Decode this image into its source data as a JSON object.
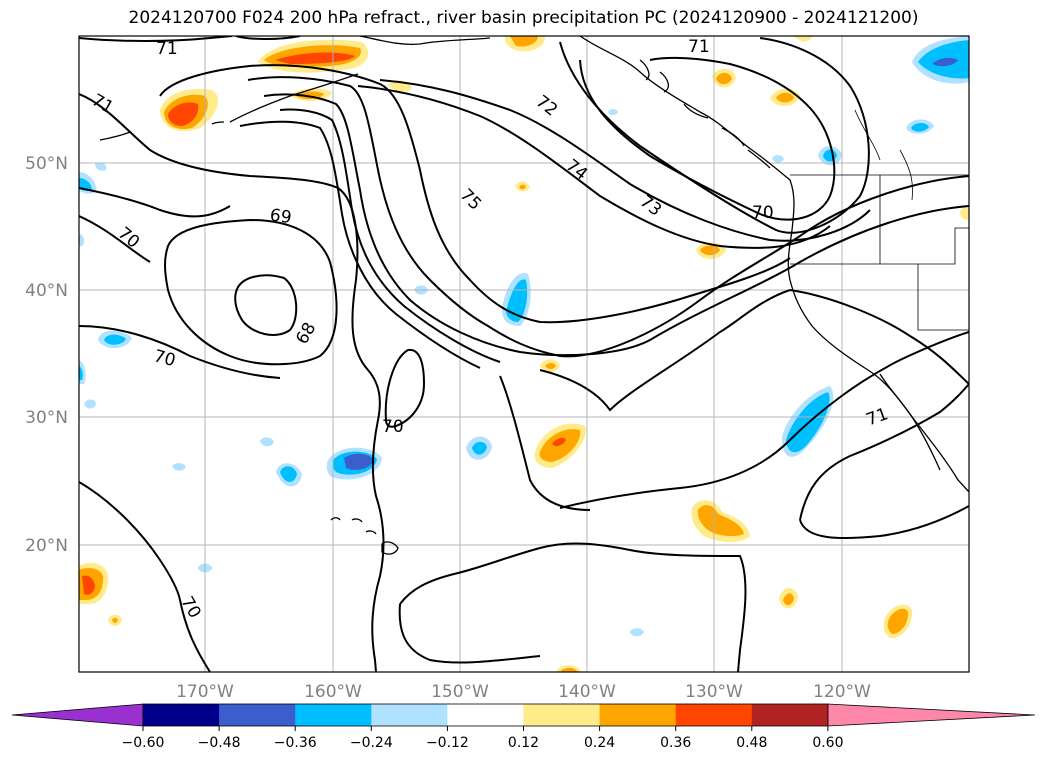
{
  "title": "2024120700 F024 200 hPa refract., river basin precipitation PC (2024120900 - 2024121200)",
  "lat_labels": [
    "50°N",
    "40°N",
    "30°N",
    "20°N"
  ],
  "lon_labels": [
    "170°W",
    "160°W",
    "150°W",
    "140°W",
    "130°W",
    "120°W"
  ],
  "contour_labels": [
    "71",
    "71",
    "71",
    "72",
    "74",
    "73",
    "75",
    "69",
    "70",
    "70",
    "68",
    "70",
    "70",
    "71",
    "70"
  ],
  "colorbar": {
    "ticks": [
      "−0.60",
      "−0.48",
      "−0.36",
      "−0.24",
      "−0.12",
      "0.12",
      "0.24",
      "0.36",
      "0.48",
      "0.60"
    ],
    "colors": [
      "#9b30d0",
      "#00008b",
      "#3a5fcd",
      "#00bfff",
      "#b0e2ff",
      "#ffffff",
      "#ffeb8a",
      "#ffa500",
      "#ff4500",
      "#b22222",
      "#ff88aa"
    ]
  },
  "shading_colors": {
    "light_blue": "#b0e2ff",
    "blue": "#00bfff",
    "mid_blue": "#3a5fcd",
    "yellow": "#ffeb8a",
    "orange": "#ffa500",
    "red_orange": "#ff4500"
  }
}
